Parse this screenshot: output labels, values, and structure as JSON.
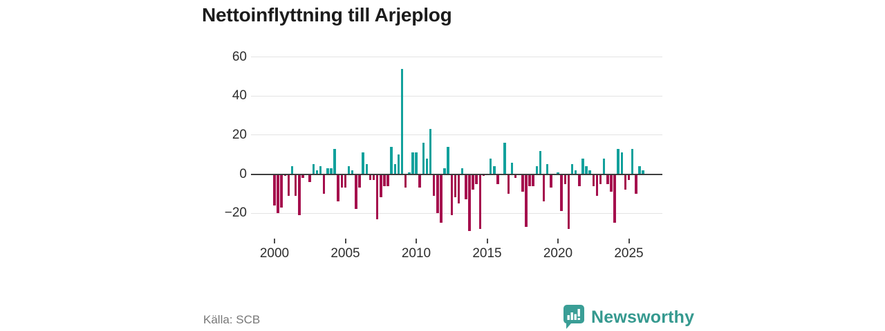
{
  "title": "Nettoinflyttning till Arjeplog",
  "source": "Källa: SCB",
  "branding": {
    "name": "Newsworthy",
    "icon": "newsworthy-speech-bubble-chart-icon",
    "color": "#3a9e96"
  },
  "colors": {
    "positive_bar": "#12a19c",
    "negative_bar": "#a50f4d",
    "zero_axis": "#3d3d3d",
    "gridline": "#e3e3e3",
    "title_text": "#1c1c1c",
    "tick_text": "#2e2e2e",
    "source_text": "#787878"
  },
  "chart_data": {
    "type": "bar",
    "title": "Nettoinflyttning till Arjeplog",
    "xlabel": "",
    "ylabel": "",
    "frequency": "quarterly",
    "grid": "horizontal",
    "legend": "none",
    "ylim": [
      -32,
      65
    ],
    "y_ticks": [
      60,
      40,
      20,
      0,
      -20
    ],
    "y_tick_labels": [
      "60",
      "40",
      "20",
      "0",
      "−20"
    ],
    "x_ticks": [
      2000,
      2005,
      2010,
      2015,
      2020,
      2025
    ],
    "x_tick_labels": [
      "2000",
      "2005",
      "2010",
      "2015",
      "2020",
      "2025"
    ],
    "quarters": [
      "2000 Q1",
      "2000 Q2",
      "2000 Q3",
      "2000 Q4",
      "2001 Q1",
      "2001 Q2",
      "2001 Q3",
      "2001 Q4",
      "2002 Q1",
      "2002 Q2",
      "2002 Q3",
      "2002 Q4",
      "2003 Q1",
      "2003 Q2",
      "2003 Q3",
      "2003 Q4",
      "2004 Q1",
      "2004 Q2",
      "2004 Q3",
      "2004 Q4",
      "2005 Q1",
      "2005 Q2",
      "2005 Q3",
      "2005 Q4",
      "2006 Q1",
      "2006 Q2",
      "2006 Q3",
      "2006 Q4",
      "2007 Q1",
      "2007 Q2",
      "2007 Q3",
      "2007 Q4",
      "2008 Q1",
      "2008 Q2",
      "2008 Q3",
      "2008 Q4",
      "2009 Q1",
      "2009 Q2",
      "2009 Q3",
      "2009 Q4",
      "2010 Q1",
      "2010 Q2",
      "2010 Q3",
      "2010 Q4",
      "2011 Q1",
      "2011 Q2",
      "2011 Q3",
      "2011 Q4",
      "2012 Q1",
      "2012 Q2",
      "2012 Q3",
      "2012 Q4",
      "2013 Q1",
      "2013 Q2",
      "2013 Q3",
      "2013 Q4",
      "2014 Q1",
      "2014 Q2",
      "2014 Q3",
      "2014 Q4",
      "2015 Q1",
      "2015 Q2",
      "2015 Q3",
      "2015 Q4",
      "2016 Q1",
      "2016 Q2",
      "2016 Q3",
      "2016 Q4",
      "2017 Q1",
      "2017 Q2",
      "2017 Q3",
      "2017 Q4",
      "2018 Q1",
      "2018 Q2",
      "2018 Q3",
      "2018 Q4",
      "2019 Q1",
      "2019 Q2",
      "2019 Q3",
      "2019 Q4",
      "2020 Q1",
      "2020 Q2",
      "2020 Q3",
      "2020 Q4",
      "2021 Q1",
      "2021 Q2",
      "2021 Q3",
      "2021 Q4",
      "2022 Q1",
      "2022 Q2",
      "2022 Q3",
      "2022 Q4",
      "2023 Q1",
      "2023 Q2",
      "2023 Q3",
      "2023 Q4",
      "2024 Q1",
      "2024 Q2",
      "2024 Q3",
      "2024 Q4",
      "2025 Q1",
      "2025 Q2",
      "2025 Q3",
      "2025 Q4",
      "2026 Q1"
    ],
    "values": [
      -16,
      -20,
      -17,
      -1,
      -11,
      4,
      -11,
      -21,
      -2,
      0,
      -4,
      5,
      2,
      4,
      -10,
      3,
      3,
      13,
      -14,
      -7,
      -7,
      4,
      2,
      -18,
      -7,
      11,
      5,
      -3,
      -3,
      -23,
      -12,
      -6,
      -6,
      14,
      5,
      10,
      54,
      -7,
      1,
      11,
      11,
      -7,
      16,
      8,
      23,
      -11,
      -20,
      -25,
      3,
      14,
      -21,
      -12,
      -15,
      3,
      -13,
      -29,
      -8,
      -5,
      -28,
      -1,
      0,
      8,
      4,
      -5,
      0,
      16,
      -10,
      6,
      -2,
      0,
      -9,
      -27,
      -6,
      -6,
      4,
      12,
      -14,
      5,
      -7,
      0,
      1,
      -19,
      -5,
      -28,
      5,
      2,
      -6,
      8,
      4,
      2,
      -6,
      -11,
      -5,
      8,
      -5,
      -9,
      -25,
      13,
      11,
      -8,
      -3,
      13,
      -10,
      4,
      2
    ]
  }
}
